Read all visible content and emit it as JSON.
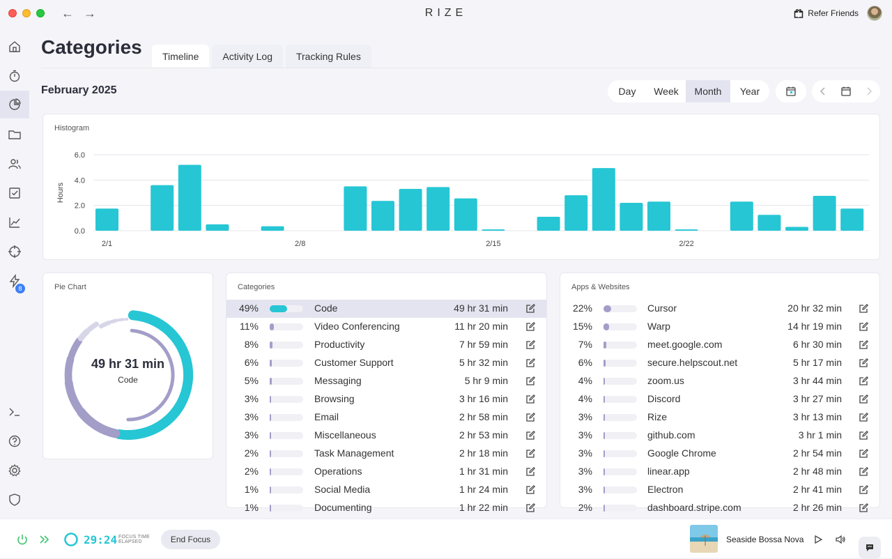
{
  "app": {
    "brand": "RIZE",
    "refer_label": "Refer Friends"
  },
  "sidebar": {
    "badge_count": "8"
  },
  "header": {
    "title": "Categories",
    "tabs": [
      {
        "label": "Timeline"
      },
      {
        "label": "Activity Log"
      },
      {
        "label": "Tracking Rules"
      }
    ],
    "period_label": "February 2025",
    "ranges": [
      {
        "label": "Day"
      },
      {
        "label": "Week"
      },
      {
        "label": "Month"
      },
      {
        "label": "Year"
      }
    ],
    "active_range": "Month"
  },
  "histogram": {
    "title": "Histogram",
    "chart_data": {
      "type": "bar",
      "ylabel": "Hours",
      "ylim": [
        0,
        6.0
      ],
      "yticks": [
        "6.0",
        "4.0",
        "2.0",
        "0.0"
      ],
      "xticks": [
        {
          "day": 1,
          "label": "2/1"
        },
        {
          "day": 8,
          "label": "2/8"
        },
        {
          "day": 15,
          "label": "2/15"
        },
        {
          "day": 22,
          "label": "2/22"
        }
      ],
      "days": [
        1,
        2,
        3,
        4,
        5,
        6,
        7,
        8,
        9,
        10,
        11,
        12,
        13,
        14,
        15,
        16,
        17,
        18,
        19,
        20,
        21,
        22,
        23,
        24,
        25,
        26,
        27,
        28
      ],
      "values": [
        1.75,
        0,
        3.6,
        5.2,
        0.5,
        0,
        0.35,
        0,
        0,
        3.5,
        2.35,
        3.3,
        3.45,
        2.55,
        0.1,
        0,
        1.1,
        2.8,
        4.95,
        2.2,
        2.3,
        0.1,
        0,
        2.3,
        1.25,
        0.3,
        2.75,
        1.75
      ],
      "color": "#26c6d4"
    }
  },
  "pie": {
    "title": "Pie Chart",
    "total": "49 hr 31 min",
    "label": "Code",
    "chart_data": {
      "type": "pie",
      "slices": [
        {
          "name": "Code",
          "percent": 49
        },
        {
          "name": "Video Conferencing",
          "percent": 11
        },
        {
          "name": "Productivity",
          "percent": 8
        },
        {
          "name": "Customer Support",
          "percent": 6
        },
        {
          "name": "Messaging",
          "percent": 5
        },
        {
          "name": "Browsing",
          "percent": 3
        },
        {
          "name": "Email",
          "percent": 3
        },
        {
          "name": "Miscellaneous",
          "percent": 3
        },
        {
          "name": "Task Management",
          "percent": 2
        },
        {
          "name": "Operations",
          "percent": 2
        },
        {
          "name": "Social Media",
          "percent": 1
        }
      ]
    }
  },
  "categories": {
    "title": "Categories",
    "rows": [
      {
        "pct": "49%",
        "value": 49,
        "name": "Code",
        "duration": "49 hr 31 min"
      },
      {
        "pct": "11%",
        "value": 11,
        "name": "Video Conferencing",
        "duration": "11 hr 20 min"
      },
      {
        "pct": "8%",
        "value": 8,
        "name": "Productivity",
        "duration": "7 hr 59 min"
      },
      {
        "pct": "6%",
        "value": 6,
        "name": "Customer Support",
        "duration": "5 hr 32 min"
      },
      {
        "pct": "5%",
        "value": 5,
        "name": "Messaging",
        "duration": "5 hr 9 min"
      },
      {
        "pct": "3%",
        "value": 3,
        "name": "Browsing",
        "duration": "3 hr 16 min"
      },
      {
        "pct": "3%",
        "value": 3,
        "name": "Email",
        "duration": "2 hr 58 min"
      },
      {
        "pct": "3%",
        "value": 3,
        "name": "Miscellaneous",
        "duration": "2 hr 53 min"
      },
      {
        "pct": "2%",
        "value": 2,
        "name": "Task Management",
        "duration": "2 hr 18 min"
      },
      {
        "pct": "2%",
        "value": 2,
        "name": "Operations",
        "duration": "1 hr 31 min"
      },
      {
        "pct": "1%",
        "value": 1,
        "name": "Social Media",
        "duration": "1 hr 24 min"
      },
      {
        "pct": "1%",
        "value": 1,
        "name": "Documenting",
        "duration": "1 hr 22 min"
      }
    ]
  },
  "apps": {
    "title": "Apps & Websites",
    "rows": [
      {
        "pct": "22%",
        "value": 22,
        "name": "Cursor",
        "duration": "20 hr 32 min"
      },
      {
        "pct": "15%",
        "value": 15,
        "name": "Warp",
        "duration": "14 hr 19 min"
      },
      {
        "pct": "7%",
        "value": 7,
        "name": "meet.google.com",
        "duration": "6 hr 30 min"
      },
      {
        "pct": "6%",
        "value": 6,
        "name": "secure.helpscout.net",
        "duration": "5 hr 17 min"
      },
      {
        "pct": "4%",
        "value": 4,
        "name": "zoom.us",
        "duration": "3 hr 44 min"
      },
      {
        "pct": "4%",
        "value": 4,
        "name": "Discord",
        "duration": "3 hr 27 min"
      },
      {
        "pct": "3%",
        "value": 3,
        "name": "Rize",
        "duration": "3 hr 13 min"
      },
      {
        "pct": "3%",
        "value": 3,
        "name": "github.com",
        "duration": "3 hr 1 min"
      },
      {
        "pct": "3%",
        "value": 3,
        "name": "Google Chrome",
        "duration": "2 hr 54 min"
      },
      {
        "pct": "3%",
        "value": 3,
        "name": "linear.app",
        "duration": "2 hr 48 min"
      },
      {
        "pct": "3%",
        "value": 3,
        "name": "Electron",
        "duration": "2 hr 41 min"
      },
      {
        "pct": "2%",
        "value": 2,
        "name": "dashboard.stripe.com",
        "duration": "2 hr 26 min"
      }
    ]
  },
  "focus": {
    "timer": "29:24",
    "sub_label_1": "FOCUS TIME",
    "sub_label_2": "ELAPSED",
    "end_label": "End Focus",
    "track_title": "Seaside Bossa Nova"
  },
  "colors": {
    "accent": "#26c6d4",
    "secondary": "#a39ec8",
    "muted": "#d7d5e8"
  }
}
